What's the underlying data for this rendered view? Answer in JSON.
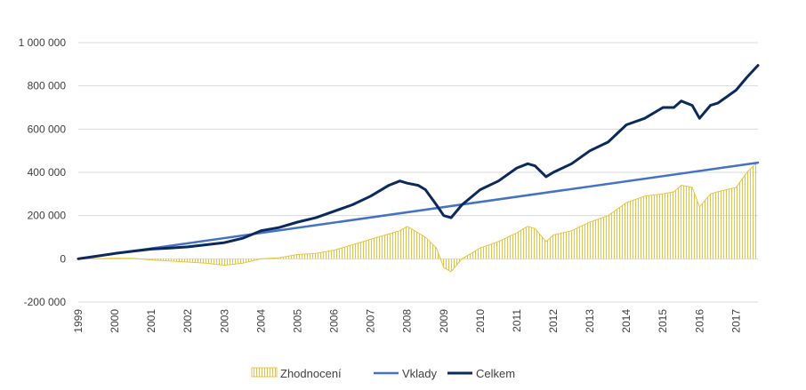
{
  "chart_data": {
    "type": "line",
    "title": "",
    "xlabel": "",
    "ylabel": "",
    "ylim": [
      -200000,
      1000000
    ],
    "y_ticks": [
      {
        "value": 1000000,
        "label": "1 000 000"
      },
      {
        "value": 800000,
        "label": "800 000"
      },
      {
        "value": 600000,
        "label": "600 000"
      },
      {
        "value": 400000,
        "label": "400 000"
      },
      {
        "value": 200000,
        "label": "200 000"
      },
      {
        "value": 0,
        "label": "0"
      },
      {
        "value": -200000,
        "label": "-200 000"
      }
    ],
    "x_range": [
      1999,
      2017.6
    ],
    "x_ticks": [
      "1999",
      "2000",
      "2001",
      "2002",
      "2003",
      "2004",
      "2005",
      "2006",
      "2007",
      "2008",
      "2009",
      "2010",
      "2011",
      "2012",
      "2013",
      "2014",
      "2015",
      "2016",
      "2017"
    ],
    "grid": true,
    "legend_position": "bottom",
    "series": [
      {
        "name": "Zhodnocení",
        "render": "area-hatched",
        "color": "#E8C43A",
        "x": [
          1999,
          1999.5,
          2000,
          2000.5,
          2001,
          2001.5,
          2002,
          2002.5,
          2003,
          2003.5,
          2004,
          2004.5,
          2005,
          2005.5,
          2006,
          2006.5,
          2007,
          2007.5,
          2007.8,
          2008,
          2008.3,
          2008.5,
          2008.8,
          2009,
          2009.2,
          2009.5,
          2010,
          2010.5,
          2011,
          2011.3,
          2011.5,
          2011.8,
          2012,
          2012.5,
          2013,
          2013.5,
          2014,
          2014.5,
          2015,
          2015.3,
          2015.5,
          2015.8,
          2016,
          2016.3,
          2016.5,
          2017,
          2017.3,
          2017.6
        ],
        "values": [
          0,
          1000,
          3000,
          2000,
          -5000,
          -10000,
          -15000,
          -20000,
          -30000,
          -20000,
          0,
          5000,
          20000,
          25000,
          40000,
          65000,
          90000,
          115000,
          130000,
          150000,
          120000,
          100000,
          50000,
          -40000,
          -60000,
          0,
          50000,
          80000,
          120000,
          150000,
          140000,
          80000,
          110000,
          130000,
          170000,
          200000,
          260000,
          290000,
          300000,
          310000,
          340000,
          330000,
          240000,
          300000,
          310000,
          330000,
          400000,
          450000
        ]
      },
      {
        "name": "Vklady",
        "render": "line",
        "color": "#4472C4",
        "x": [
          1999,
          2017.6
        ],
        "values": [
          0,
          445000
        ]
      },
      {
        "name": "Celkem",
        "render": "line",
        "color": "#0A2A5E",
        "x": [
          1999,
          1999.5,
          2000,
          2000.5,
          2001,
          2001.5,
          2002,
          2002.5,
          2003,
          2003.5,
          2004,
          2004.5,
          2005,
          2005.5,
          2006,
          2006.5,
          2007,
          2007.5,
          2007.8,
          2008,
          2008.3,
          2008.5,
          2008.8,
          2009,
          2009.2,
          2009.5,
          2010,
          2010.5,
          2011,
          2011.3,
          2011.5,
          2011.8,
          2012,
          2012.5,
          2013,
          2013.5,
          2014,
          2014.5,
          2015,
          2015.3,
          2015.5,
          2015.8,
          2016,
          2016.3,
          2016.5,
          2017,
          2017.3,
          2017.6
        ],
        "values": [
          0,
          12000,
          25000,
          35000,
          45000,
          50000,
          55000,
          65000,
          75000,
          95000,
          130000,
          145000,
          170000,
          190000,
          220000,
          250000,
          290000,
          340000,
          360000,
          350000,
          340000,
          320000,
          250000,
          200000,
          190000,
          250000,
          320000,
          360000,
          420000,
          440000,
          430000,
          380000,
          400000,
          440000,
          500000,
          540000,
          620000,
          650000,
          700000,
          700000,
          730000,
          710000,
          650000,
          710000,
          720000,
          780000,
          840000,
          895000
        ]
      }
    ]
  }
}
